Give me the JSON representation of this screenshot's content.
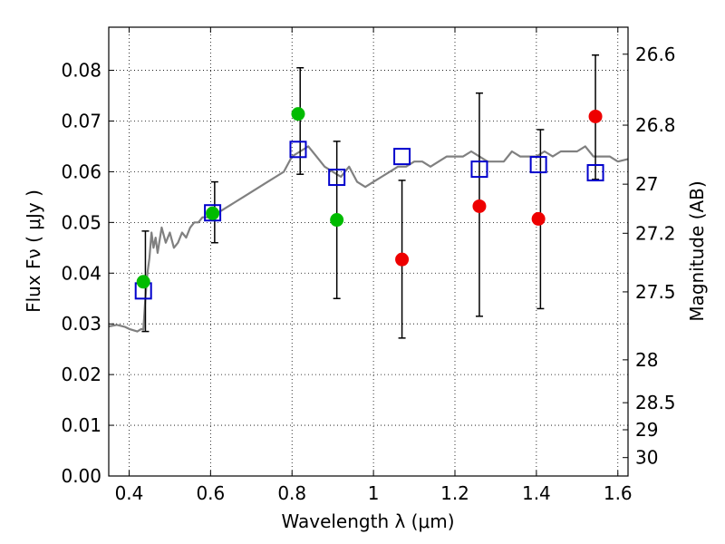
{
  "chart_data": {
    "type": "scatter",
    "xlabel": "Wavelength  λ (μm)",
    "ylabel": "Flux  Fν  ( μJy )",
    "ylabel_right": "Magnitude (AB)",
    "xlim": [
      0.35,
      1.625
    ],
    "ylim": [
      0.0,
      0.0885
    ],
    "x_ticks": [
      0.4,
      0.6,
      0.8,
      1.0,
      1.2,
      1.4,
      1.6
    ],
    "x_tick_labels": [
      "0.4",
      "0.6",
      "0.8",
      "1",
      "1.2",
      "1.4",
      "1.6"
    ],
    "y_ticks": [
      0.0,
      0.01,
      0.02,
      0.03,
      0.04,
      0.05,
      0.06,
      0.07,
      0.08
    ],
    "y_tick_labels": [
      "0.00",
      "0.01",
      "0.02",
      "0.03",
      "0.04",
      "0.05",
      "0.06",
      "0.07",
      "0.08"
    ],
    "mag_ticks": [
      26.6,
      26.8,
      27.0,
      27.2,
      27.5,
      28.0,
      28.5,
      29.0,
      30.0
    ],
    "mag_tick_labels": [
      "26.6",
      "26.8",
      "27",
      "27.2",
      "27.5",
      "28",
      "28.5",
      "29",
      "30"
    ],
    "grid": true,
    "series": [
      {
        "marker": "line",
        "color": "#808080",
        "x": [
          0.35,
          0.37,
          0.39,
          0.4,
          0.42,
          0.43,
          0.435,
          0.44,
          0.445,
          0.45,
          0.455,
          0.46,
          0.465,
          0.47,
          0.48,
          0.49,
          0.5,
          0.51,
          0.52,
          0.53,
          0.54,
          0.55,
          0.56,
          0.57,
          0.58,
          0.6,
          0.62,
          0.64,
          0.66,
          0.68,
          0.7,
          0.72,
          0.74,
          0.76,
          0.78,
          0.8,
          0.82,
          0.84,
          0.86,
          0.88,
          0.9,
          0.92,
          0.94,
          0.96,
          0.98,
          1.0,
          1.02,
          1.04,
          1.06,
          1.08,
          1.1,
          1.12,
          1.14,
          1.16,
          1.18,
          1.2,
          1.22,
          1.24,
          1.26,
          1.28,
          1.3,
          1.32,
          1.34,
          1.36,
          1.38,
          1.4,
          1.42,
          1.44,
          1.46,
          1.48,
          1.5,
          1.52,
          1.54,
          1.56,
          1.58,
          1.6,
          1.625
        ],
        "y": [
          0.0295,
          0.0298,
          0.0294,
          0.029,
          0.0285,
          0.029,
          0.0289,
          0.035,
          0.04,
          0.043,
          0.048,
          0.045,
          0.047,
          0.044,
          0.049,
          0.046,
          0.048,
          0.045,
          0.046,
          0.048,
          0.047,
          0.049,
          0.05,
          0.05,
          0.051,
          0.051,
          0.052,
          0.053,
          0.054,
          0.055,
          0.056,
          0.057,
          0.058,
          0.059,
          0.06,
          0.063,
          0.064,
          0.065,
          0.063,
          0.061,
          0.06,
          0.059,
          0.061,
          0.058,
          0.057,
          0.058,
          0.059,
          0.06,
          0.061,
          0.061,
          0.062,
          0.062,
          0.061,
          0.062,
          0.063,
          0.063,
          0.063,
          0.064,
          0.063,
          0.062,
          0.062,
          0.062,
          0.064,
          0.063,
          0.063,
          0.063,
          0.064,
          0.063,
          0.064,
          0.064,
          0.064,
          0.065,
          0.063,
          0.063,
          0.063,
          0.062,
          0.0625
        ]
      },
      {
        "marker": "square",
        "color": "#0000cc",
        "x": [
          0.435,
          0.605,
          0.815,
          0.91,
          1.07,
          1.26,
          1.405,
          1.545
        ],
        "y": [
          0.0365,
          0.0519,
          0.0644,
          0.0589,
          0.063,
          0.0605,
          0.0614,
          0.0598
        ]
      },
      {
        "marker": "circle",
        "color": "#00bb00",
        "x": [
          0.435,
          0.605,
          0.815,
          0.91
        ],
        "y": [
          0.0383,
          0.0518,
          0.0714,
          0.0505
        ]
      },
      {
        "marker": "circle",
        "color": "#ee0000",
        "x": [
          1.07,
          1.26,
          1.405,
          1.545
        ],
        "y": [
          0.0427,
          0.0532,
          0.0507,
          0.0709
        ]
      }
    ],
    "errorbars": [
      {
        "x": 0.44,
        "low": 0.0285,
        "high": 0.0483
      },
      {
        "x": 0.61,
        "low": 0.046,
        "high": 0.058
      },
      {
        "x": 0.82,
        "low": 0.0595,
        "high": 0.0805
      },
      {
        "x": 0.91,
        "low": 0.035,
        "high": 0.066
      },
      {
        "x": 1.07,
        "low": 0.0272,
        "high": 0.0583
      },
      {
        "x": 1.26,
        "low": 0.0315,
        "high": 0.0755
      },
      {
        "x": 1.41,
        "low": 0.033,
        "high": 0.0683
      },
      {
        "x": 1.545,
        "low": 0.0585,
        "high": 0.083
      }
    ]
  }
}
